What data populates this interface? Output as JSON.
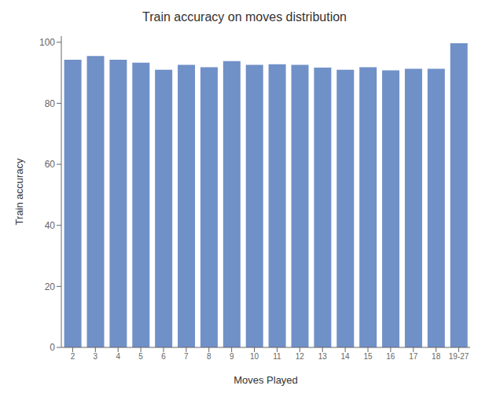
{
  "chart_data": {
    "type": "bar",
    "title": "Train accuracy on moves distribution",
    "xlabel": "Moves Played",
    "ylabel": "Train accuracy",
    "categories": [
      "2",
      "3",
      "4",
      "5",
      "6",
      "7",
      "8",
      "9",
      "10",
      "11",
      "12",
      "13",
      "14",
      "15",
      "16",
      "17",
      "18",
      "19-27"
    ],
    "values": [
      94.3,
      95.5,
      94.3,
      93.3,
      91.0,
      92.6,
      91.8,
      93.8,
      92.6,
      92.8,
      92.6,
      91.7,
      91.0,
      91.8,
      90.8,
      91.3,
      91.3,
      99.7
    ],
    "color": "#7090c8",
    "ylim": [
      0,
      102
    ],
    "yticks": [
      0,
      20,
      40,
      60,
      80,
      100
    ],
    "grid": false
  }
}
